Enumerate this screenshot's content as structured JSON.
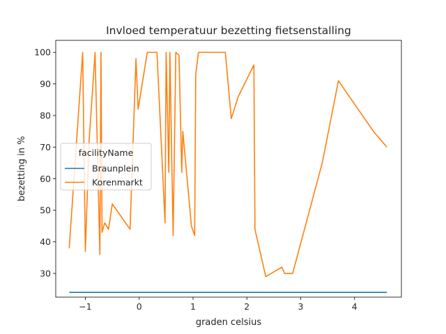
{
  "chart_data": {
    "type": "line",
    "title": "Invloed temperatuur bezetting fietsenstalling",
    "xlabel": "graden celsius",
    "ylabel": "bezetting in %",
    "xlim": [
      -1.55,
      4.87
    ],
    "ylim": [
      22.5,
      103.8
    ],
    "xticks": [
      -1,
      0,
      1,
      2,
      3,
      4
    ],
    "xtick_labels": [
      "−1",
      "0",
      "1",
      "2",
      "3",
      "4"
    ],
    "yticks": [
      30,
      40,
      50,
      60,
      70,
      80,
      90,
      100
    ],
    "ytick_labels": [
      "30",
      "40",
      "50",
      "60",
      "70",
      "80",
      "90",
      "100"
    ],
    "grid": false,
    "legend": {
      "title": "facilityName",
      "placement": "center-left"
    },
    "series": [
      {
        "name": "Braunplein",
        "color": "#1f77b4",
        "points": [
          [
            -1.3,
            24
          ],
          [
            4.6,
            24
          ]
        ]
      },
      {
        "name": "Korenmarkt",
        "color": "#ff7f0e",
        "points": [
          [
            -1.3,
            38
          ],
          [
            -1.05,
            100
          ],
          [
            -1.0,
            37
          ],
          [
            -0.93,
            72
          ],
          [
            -0.82,
            100
          ],
          [
            -0.73,
            36
          ],
          [
            -0.71,
            100
          ],
          [
            -0.69,
            43
          ],
          [
            -0.64,
            46
          ],
          [
            -0.57,
            44
          ],
          [
            -0.5,
            52
          ],
          [
            -0.17,
            44
          ],
          [
            -0.06,
            98
          ],
          [
            -0.02,
            82
          ],
          [
            0.15,
            100
          ],
          [
            0.33,
            100
          ],
          [
            0.48,
            46
          ],
          [
            0.5,
            100
          ],
          [
            0.55,
            62
          ],
          [
            0.57,
            100
          ],
          [
            0.63,
            42
          ],
          [
            0.68,
            100
          ],
          [
            0.74,
            99
          ],
          [
            0.79,
            62
          ],
          [
            0.81,
            75
          ],
          [
            0.97,
            45
          ],
          [
            1.03,
            42
          ],
          [
            1.05,
            93
          ],
          [
            1.1,
            100
          ],
          [
            1.6,
            100
          ],
          [
            1.71,
            79
          ],
          [
            1.84,
            86
          ],
          [
            2.13,
            96
          ],
          [
            2.15,
            44
          ],
          [
            2.35,
            29
          ],
          [
            2.65,
            32
          ],
          [
            2.7,
            30
          ],
          [
            2.85,
            30
          ],
          [
            3.4,
            65
          ],
          [
            3.7,
            91
          ],
          [
            4.35,
            75
          ],
          [
            4.6,
            70
          ]
        ]
      }
    ]
  }
}
